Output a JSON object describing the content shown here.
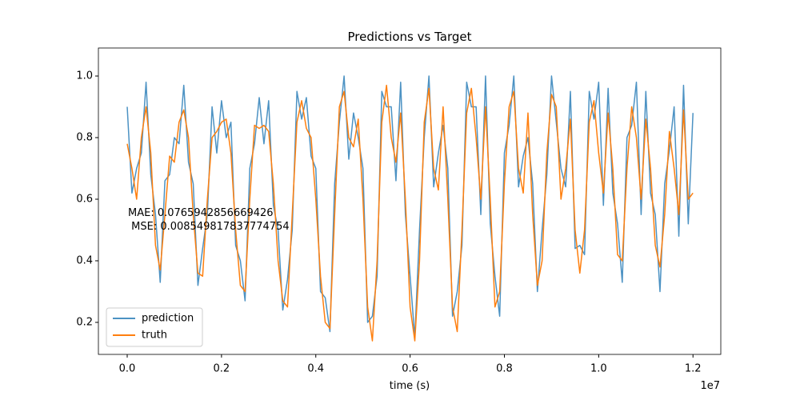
{
  "chart_data": {
    "type": "line",
    "title": "Predictions vs Target",
    "x_label": "time (s)",
    "x_offset_label": "1e7",
    "annotation": "MAE: 0.0765942856669426\n MSE: 0.008549817837774754",
    "legend": "lower left",
    "grid": false,
    "xlim": [
      -611000,
      12590000
    ],
    "ylim": [
      0.096,
      1.091
    ],
    "xticks": [
      {
        "value": 0,
        "label": "0.0"
      },
      {
        "value": 2000000,
        "label": "0.2"
      },
      {
        "value": 4000000,
        "label": "0.4"
      },
      {
        "value": 6000000,
        "label": "0.6"
      },
      {
        "value": 8000000,
        "label": "0.8"
      },
      {
        "value": 10000000,
        "label": "1.0"
      },
      {
        "value": 12000000,
        "label": "1.2"
      }
    ],
    "yticks": [
      0.2,
      0.4,
      0.6,
      0.8,
      {
        "value": 1,
        "label": "1.0"
      }
    ],
    "x": [
      0,
      100000,
      200000,
      300000,
      400000,
      500000,
      600000,
      700000,
      800000,
      900000,
      1000000,
      1100000,
      1200000,
      1300000,
      1400000,
      1500000,
      1600000,
      1700000,
      1800000,
      1900000,
      2000000,
      2100000,
      2200000,
      2300000,
      2400000,
      2500000,
      2600000,
      2700000,
      2800000,
      2900000,
      3000000,
      3100000,
      3200000,
      3300000,
      3400000,
      3500000,
      3600000,
      3700000,
      3800000,
      3900000,
      4000000,
      4100000,
      4200000,
      4300000,
      4400000,
      4500000,
      4600000,
      4700000,
      4800000,
      4900000,
      5000000,
      5100000,
      5200000,
      5300000,
      5400000,
      5500000,
      5600000,
      5700000,
      5800000,
      5900000,
      6000000,
      6100000,
      6200000,
      6300000,
      6400000,
      6500000,
      6600000,
      6700000,
      6800000,
      6900000,
      7000000,
      7100000,
      7200000,
      7300000,
      7400000,
      7500000,
      7600000,
      7700000,
      7800000,
      7900000,
      8000000,
      8100000,
      8200000,
      8300000,
      8400000,
      8500000,
      8600000,
      8700000,
      8800000,
      8900000,
      9000000,
      9100000,
      9200000,
      9300000,
      9400000,
      9500000,
      9600000,
      9700000,
      9800000,
      9900000,
      10000000,
      10100000,
      10200000,
      10300000,
      10400000,
      10500000,
      10600000,
      10700000,
      10800000,
      10900000,
      11000000,
      11100000,
      11200000,
      11300000,
      11400000,
      11500000,
      11600000,
      11700000,
      11800000,
      11900000,
      12000000
    ],
    "series": [
      {
        "name": "prediction",
        "color": "#1f77b4",
        "opacity": 0.8,
        "values": [
          0.9,
          0.62,
          0.7,
          0.75,
          0.98,
          0.68,
          0.55,
          0.33,
          0.66,
          0.68,
          0.8,
          0.78,
          0.97,
          0.72,
          0.65,
          0.32,
          0.44,
          0.55,
          0.9,
          0.75,
          0.92,
          0.8,
          0.85,
          0.45,
          0.4,
          0.27,
          0.7,
          0.78,
          0.93,
          0.78,
          0.92,
          0.58,
          0.5,
          0.24,
          0.34,
          0.5,
          0.95,
          0.86,
          0.93,
          0.74,
          0.7,
          0.3,
          0.28,
          0.17,
          0.65,
          0.85,
          1.0,
          0.73,
          0.88,
          0.8,
          0.7,
          0.2,
          0.22,
          0.35,
          0.95,
          0.9,
          0.9,
          0.66,
          0.98,
          0.55,
          0.35,
          0.15,
          0.5,
          0.8,
          1.0,
          0.64,
          0.75,
          0.84,
          0.7,
          0.22,
          0.3,
          0.45,
          0.98,
          0.9,
          0.9,
          0.55,
          1.0,
          0.52,
          0.35,
          0.22,
          0.75,
          0.84,
          1.0,
          0.64,
          0.74,
          0.8,
          0.65,
          0.3,
          0.5,
          0.68,
          1.0,
          0.85,
          0.7,
          0.64,
          0.95,
          0.44,
          0.45,
          0.42,
          0.95,
          0.86,
          0.98,
          0.58,
          0.96,
          0.62,
          0.52,
          0.33,
          0.8,
          0.84,
          0.98,
          0.55,
          0.95,
          0.62,
          0.55,
          0.3,
          0.65,
          0.76,
          0.9,
          0.48,
          0.97,
          0.52,
          0.88
        ]
      },
      {
        "name": "truth",
        "color": "#ff7f0e",
        "opacity": 1,
        "values": [
          0.78,
          0.7,
          0.6,
          0.8,
          0.9,
          0.75,
          0.45,
          0.37,
          0.55,
          0.74,
          0.72,
          0.85,
          0.89,
          0.8,
          0.55,
          0.36,
          0.35,
          0.6,
          0.8,
          0.82,
          0.85,
          0.86,
          0.75,
          0.5,
          0.32,
          0.3,
          0.6,
          0.84,
          0.83,
          0.84,
          0.82,
          0.65,
          0.4,
          0.27,
          0.25,
          0.55,
          0.85,
          0.92,
          0.83,
          0.8,
          0.6,
          0.35,
          0.2,
          0.18,
          0.55,
          0.9,
          0.95,
          0.8,
          0.77,
          0.86,
          0.6,
          0.25,
          0.14,
          0.4,
          0.85,
          0.97,
          0.8,
          0.72,
          0.88,
          0.6,
          0.25,
          0.14,
          0.4,
          0.85,
          0.96,
          0.7,
          0.63,
          0.9,
          0.6,
          0.25,
          0.17,
          0.5,
          0.88,
          0.96,
          0.8,
          0.6,
          0.9,
          0.6,
          0.25,
          0.3,
          0.65,
          0.9,
          0.95,
          0.7,
          0.62,
          0.88,
          0.55,
          0.32,
          0.4,
          0.75,
          0.94,
          0.9,
          0.6,
          0.7,
          0.86,
          0.5,
          0.36,
          0.5,
          0.85,
          0.92,
          0.75,
          0.62,
          0.88,
          0.7,
          0.42,
          0.4,
          0.7,
          0.9,
          0.8,
          0.6,
          0.86,
          0.7,
          0.45,
          0.38,
          0.55,
          0.82,
          0.7,
          0.55,
          0.89,
          0.6,
          0.62
        ]
      }
    ]
  }
}
